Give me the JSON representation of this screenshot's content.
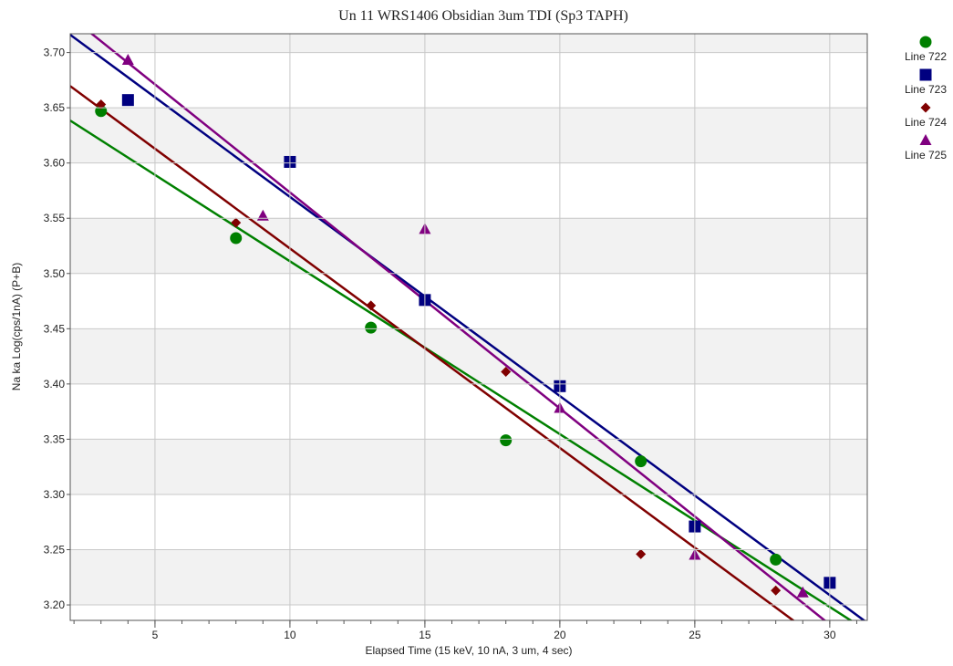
{
  "chart_data": {
    "type": "scatter",
    "title": "Un   11  WRS1406 Obsidian 3um TDI (Sp3 TAPH)",
    "x_label": "Elapsed Time (15 keV, 10 nA, 3 um, 4 sec)",
    "y_label": "Na ka Log(cps/1nA) (P+B)",
    "xlim": [
      1.86,
      31.39
    ],
    "ylim": [
      3.186,
      3.717
    ],
    "xticks": [
      5,
      10,
      15,
      20,
      25,
      30
    ],
    "yticks": [
      {
        "value": 3.2,
        "label": "3.20"
      },
      {
        "value": 3.25,
        "label": "3.25"
      },
      {
        "value": 3.3,
        "label": "3.30"
      },
      {
        "value": 3.35,
        "label": "3.35"
      },
      {
        "value": 3.4,
        "label": "3.40"
      },
      {
        "value": 3.45,
        "label": "3.45"
      },
      {
        "value": 3.5,
        "label": "3.50"
      },
      {
        "value": 3.55,
        "label": "3.55"
      },
      {
        "value": 3.6,
        "label": "3.60"
      },
      {
        "value": 3.65,
        "label": "3.65"
      },
      {
        "value": 3.7,
        "label": "3.70"
      }
    ],
    "grid": true,
    "fit_lines": true,
    "legend": "right",
    "series": [
      {
        "name": "Line 722",
        "color": "#008000",
        "marker": "circle",
        "x": [
          3,
          8,
          13,
          18,
          23,
          28
        ],
        "values": [
          3.647,
          3.532,
          3.451,
          3.349,
          3.33,
          3.241
        ]
      },
      {
        "name": "Line 723",
        "color": "#000080",
        "marker": "square",
        "x": [
          4,
          10,
          15,
          20,
          25,
          30
        ],
        "values": [
          3.657,
          3.601,
          3.476,
          3.398,
          3.271,
          3.22
        ]
      },
      {
        "name": "Line 724",
        "color": "#800000",
        "marker": "diamond",
        "x": [
          3,
          8,
          13,
          18,
          23,
          28
        ],
        "values": [
          3.653,
          3.546,
          3.471,
          3.411,
          3.246,
          3.213
        ]
      },
      {
        "name": "Line 725",
        "color": "#800080",
        "marker": "triangle",
        "x": [
          4,
          9,
          15,
          20,
          25,
          29
        ],
        "values": [
          3.693,
          3.552,
          3.54,
          3.378,
          3.245,
          3.211
        ]
      }
    ]
  }
}
